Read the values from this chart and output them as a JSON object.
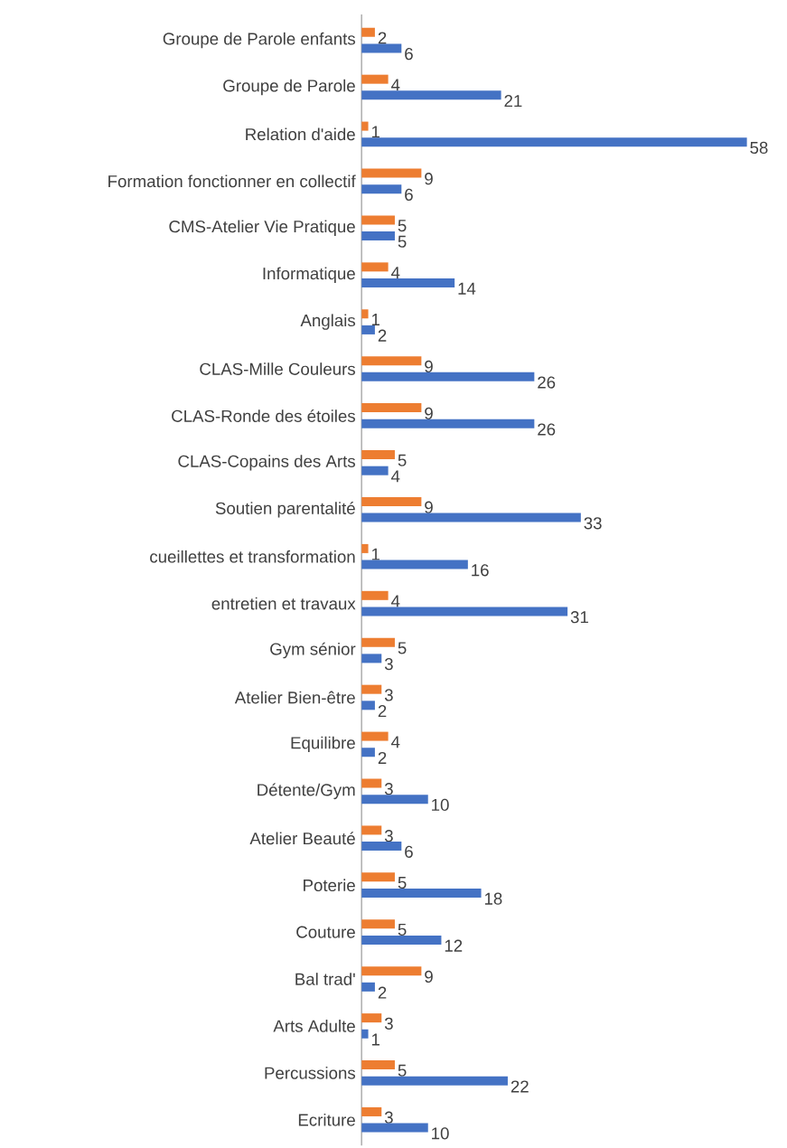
{
  "chart_data": {
    "type": "bar",
    "orientation": "horizontal",
    "data_labels": true,
    "categories": [
      "Groupe de Parole enfants",
      "Groupe de Parole",
      "Relation d'aide",
      "Formation fonctionner en collectif",
      "CMS-Atelier Vie Pratique",
      "Informatique",
      "Anglais",
      "CLAS-Mille Couleurs",
      "CLAS-Ronde des étoiles",
      "CLAS-Copains des Arts",
      "Soutien parentalité",
      "cueillettes et transformation",
      "entretien et travaux",
      "Gym sénior",
      "Atelier Bien-être",
      "Equilibre",
      "Détente/Gym",
      "Atelier Beauté",
      "Poterie",
      "Couture",
      "Bal trad'",
      "Arts Adulte",
      "Percussions",
      "Ecriture"
    ],
    "series": [
      {
        "color": "#ed7d31",
        "values": [
          2,
          4,
          1,
          9,
          5,
          4,
          1,
          9,
          9,
          5,
          9,
          1,
          4,
          5,
          3,
          4,
          3,
          3,
          5,
          5,
          9,
          3,
          5,
          3
        ]
      },
      {
        "color": "#4472c4",
        "values": [
          6,
          21,
          58,
          6,
          5,
          14,
          2,
          26,
          26,
          4,
          33,
          16,
          31,
          3,
          2,
          2,
          10,
          6,
          18,
          12,
          2,
          1,
          22,
          10
        ]
      }
    ]
  }
}
